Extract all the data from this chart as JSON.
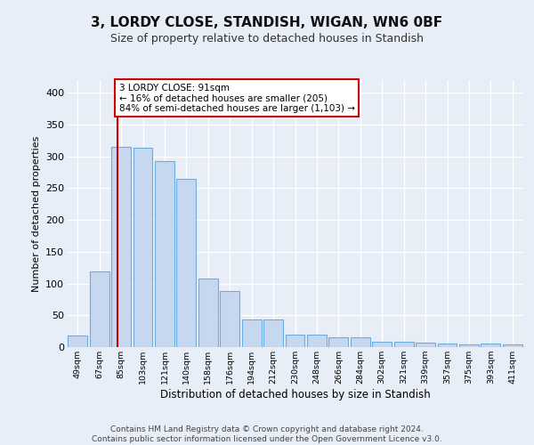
{
  "title": "3, LORDY CLOSE, STANDISH, WIGAN, WN6 0BF",
  "subtitle": "Size of property relative to detached houses in Standish",
  "xlabel": "Distribution of detached houses by size in Standish",
  "ylabel": "Number of detached properties",
  "categories": [
    "49sqm",
    "67sqm",
    "85sqm",
    "103sqm",
    "121sqm",
    "140sqm",
    "158sqm",
    "176sqm",
    "194sqm",
    "212sqm",
    "230sqm",
    "248sqm",
    "266sqm",
    "284sqm",
    "302sqm",
    "321sqm",
    "339sqm",
    "357sqm",
    "375sqm",
    "393sqm",
    "411sqm"
  ],
  "values": [
    18,
    119,
    315,
    314,
    293,
    265,
    108,
    88,
    44,
    44,
    20,
    20,
    15,
    15,
    8,
    8,
    7,
    5,
    4,
    5,
    4
  ],
  "bar_color": "#c5d8f0",
  "bar_edge_color": "#6aabe0",
  "vline_color": "#cc0000",
  "annotation_text": "3 LORDY CLOSE: 91sqm\n← 16% of detached houses are smaller (205)\n84% of semi-detached houses are larger (1,103) →",
  "ylim": [
    0,
    420
  ],
  "yticks": [
    0,
    50,
    100,
    150,
    200,
    250,
    300,
    350,
    400
  ],
  "footer": "Contains HM Land Registry data © Crown copyright and database right 2024.\nContains public sector information licensed under the Open Government Licence v3.0.",
  "bg_color": "#e8eef8",
  "grid_color": "#ffffff"
}
